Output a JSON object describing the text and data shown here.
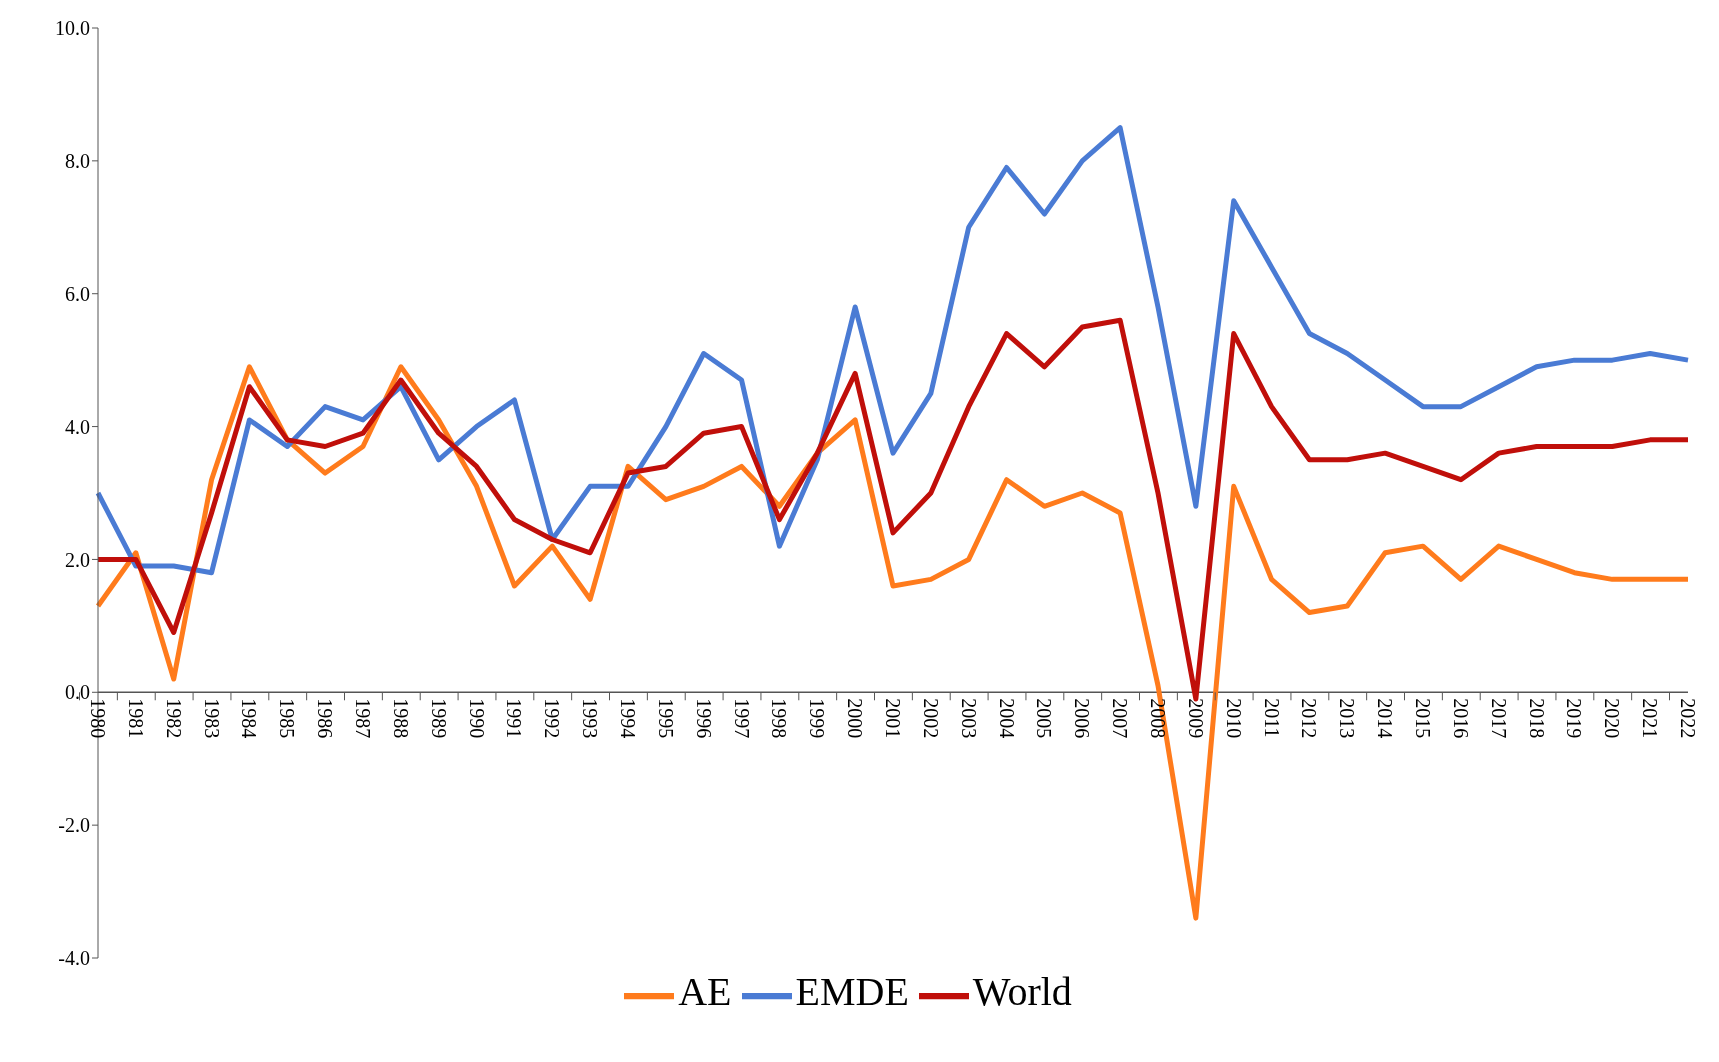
{
  "chart_data": {
    "type": "line",
    "categories": [
      "1980",
      "1981",
      "1982",
      "1983",
      "1984",
      "1985",
      "1986",
      "1987",
      "1988",
      "1989",
      "1990",
      "1991",
      "1992",
      "1993",
      "1994",
      "1995",
      "1996",
      "1997",
      "1998",
      "1999",
      "2000",
      "2001",
      "2002",
      "2003",
      "2004",
      "2005",
      "2006",
      "2007",
      "2008",
      "2009",
      "2010",
      "2011",
      "2012",
      "2013",
      "2014",
      "2015",
      "2016",
      "2017",
      "2018",
      "2019",
      "2020",
      "2021",
      "2022"
    ],
    "series": [
      {
        "name": "AE",
        "color": "#ff7b1c",
        "values": [
          1.3,
          2.1,
          0.2,
          3.2,
          4.9,
          3.8,
          3.3,
          3.7,
          4.9,
          4.1,
          3.1,
          1.6,
          2.2,
          1.4,
          3.4,
          2.9,
          3.1,
          3.4,
          2.8,
          3.6,
          4.1,
          1.6,
          1.7,
          2.0,
          3.2,
          2.8,
          3.0,
          2.7,
          0.1,
          -3.4,
          3.1,
          1.7,
          1.2,
          1.3,
          2.1,
          2.2,
          1.7,
          2.2,
          2.0,
          1.8,
          1.7,
          1.7,
          1.7
        ]
      },
      {
        "name": "EMDE",
        "color": "#4a7bd4",
        "values": [
          3.0,
          1.9,
          1.9,
          1.8,
          4.1,
          3.7,
          4.3,
          4.1,
          4.6,
          3.5,
          4.0,
          4.4,
          2.3,
          3.1,
          3.1,
          4.0,
          5.1,
          4.7,
          2.2,
          3.5,
          5.8,
          3.6,
          4.5,
          7.0,
          7.9,
          7.2,
          8.0,
          8.5,
          5.8,
          2.8,
          7.4,
          6.4,
          5.4,
          5.1,
          4.7,
          4.3,
          4.3,
          4.6,
          4.9,
          5.0,
          5.0,
          5.1,
          5.0
        ]
      },
      {
        "name": "World",
        "color": "#c00f0a",
        "values": [
          2.0,
          2.0,
          0.9,
          2.7,
          4.6,
          3.8,
          3.7,
          3.9,
          4.7,
          3.9,
          3.4,
          2.6,
          2.3,
          2.1,
          3.3,
          3.4,
          3.9,
          4.0,
          2.6,
          3.6,
          4.8,
          2.4,
          3.0,
          4.3,
          5.4,
          4.9,
          5.5,
          5.6,
          3.0,
          -0.1,
          5.4,
          4.3,
          3.5,
          3.5,
          3.6,
          3.4,
          3.2,
          3.6,
          3.7,
          3.7,
          3.7,
          3.8,
          3.8
        ]
      }
    ],
    "ylim": [
      -4,
      10
    ],
    "yticks": [
      {
        "value": -4,
        "label": "-4.0"
      },
      {
        "value": -2,
        "label": "-2.0"
      },
      {
        "value": 0,
        "label": "0.0"
      },
      {
        "value": 2,
        "label": "2.0"
      },
      {
        "value": 4,
        "label": "4.0"
      },
      {
        "value": 6,
        "label": "6.0"
      },
      {
        "value": 8,
        "label": "8.0"
      },
      {
        "value": 10,
        "label": "10.0"
      }
    ],
    "legend": "bottom",
    "marker": "none",
    "line_style": "solid"
  }
}
